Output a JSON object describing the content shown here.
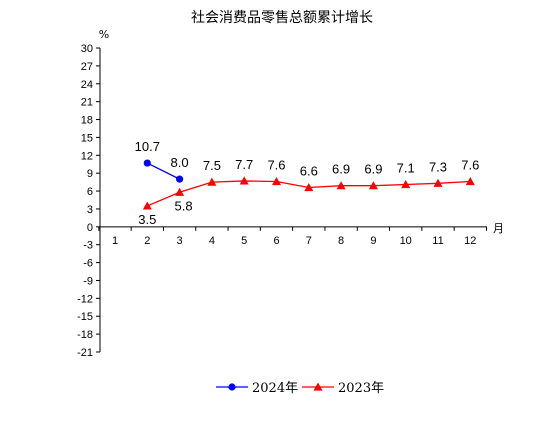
{
  "chart_data": {
    "type": "line",
    "title": "社会消费品零售总额累计增长",
    "ylabel": "%",
    "xlabel": "月",
    "ylim": [
      -21,
      30
    ],
    "yticks": [
      30,
      27,
      24,
      21,
      18,
      15,
      12,
      9,
      6,
      3,
      0,
      -3,
      -6,
      -9,
      -12,
      -15,
      -18,
      -21
    ],
    "categories": [
      "1",
      "2",
      "3",
      "4",
      "5",
      "6",
      "7",
      "8",
      "9",
      "10",
      "11",
      "12"
    ],
    "legend_position": "bottom-center",
    "grid": false,
    "series": [
      {
        "name": "2024年",
        "color": "#0000ff",
        "marker": "circle",
        "x": [
          "2",
          "3"
        ],
        "values": [
          10.7,
          8.0
        ],
        "labels": [
          "10.7",
          "8.0"
        ]
      },
      {
        "name": "2023年",
        "color": "#ff0000",
        "marker": "triangle",
        "x": [
          "2",
          "3",
          "4",
          "5",
          "6",
          "7",
          "8",
          "9",
          "10",
          "11",
          "12"
        ],
        "values": [
          3.5,
          5.8,
          7.5,
          7.7,
          7.6,
          6.6,
          6.9,
          6.9,
          7.1,
          7.3,
          7.6
        ],
        "labels": [
          "3.5",
          "5.8",
          "7.5",
          "7.7",
          "7.6",
          "6.6",
          "6.9",
          "6.9",
          "7.1",
          "7.3",
          "7.6"
        ]
      }
    ]
  }
}
